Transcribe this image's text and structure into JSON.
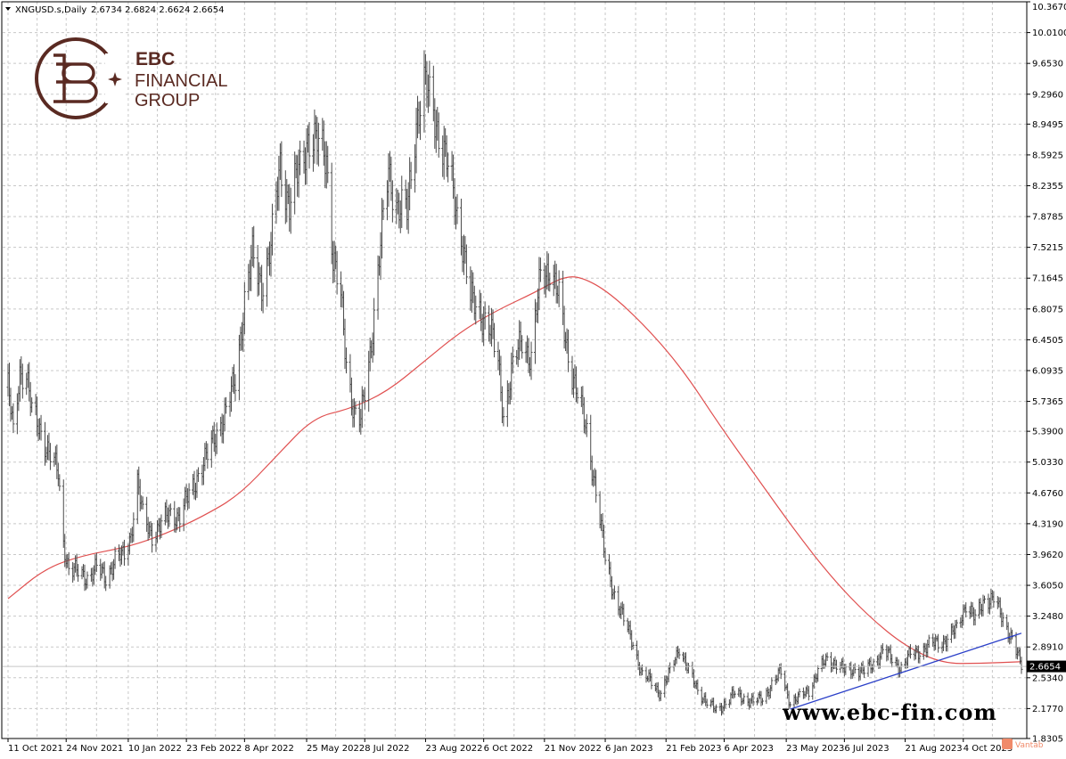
{
  "header": {
    "symbol": "XNGUSD.s,Daily",
    "ohlc": "2.6734 2.6824 2.6624 2.6654"
  },
  "brand": {
    "name": "EBC",
    "line2": "FINANCIAL",
    "line3": "GROUP",
    "website": "www.ebc-fin.com",
    "corner_label": "Vantab"
  },
  "colors": {
    "price_bars": "#4a4a4a",
    "moving_average": "#e05050",
    "trendline": "#2a3fc8",
    "grid": "#c8c8c8",
    "brand": "#5a2a22",
    "price_tag_bg": "#000000"
  },
  "chart_data": {
    "type": "bar",
    "title": "",
    "symbol": "XNGUSD.s",
    "timeframe": "Daily",
    "last_price": 2.6654,
    "last_price_label": "2.6654",
    "ylim": [
      1.83,
      10.367
    ],
    "y_ticks": [
      10.367,
      10.01,
      9.653,
      9.296,
      8.9495,
      8.5925,
      8.2355,
      7.8785,
      7.5215,
      7.1645,
      6.8075,
      6.4505,
      6.0935,
      5.7365,
      5.39,
      5.033,
      4.676,
      4.319,
      3.962,
      3.605,
      3.248,
      2.891,
      2.534,
      2.177,
      1.8305
    ],
    "y_tick_labels": [
      "10.3670",
      "10.0100",
      "9.6530",
      "9.2960",
      "8.9495",
      "8.5925",
      "8.2355",
      "7.8785",
      "7.5215",
      "7.1645",
      "6.8075",
      "6.4505",
      "6.0935",
      "5.7365",
      "5.3900",
      "5.0330",
      "4.6760",
      "4.3190",
      "3.9620",
      "3.6050",
      "3.2480",
      "2.8910",
      "2.5340",
      "2.1770",
      "1.8305"
    ],
    "x_tick_labels": [
      "11 Oct 2021",
      "24 Nov 2021",
      "10 Jan 2022",
      "23 Feb 2022",
      "8 Apr 2022",
      "25 May 2022",
      "8 Jul 2022",
      "23 Aug 2022",
      "6 Oct 2022",
      "21 Nov 2022",
      "6 Jan 2023",
      "21 Feb 2023",
      "6 Apr 2023",
      "23 May 2023",
      "6 Jul 2023",
      "21 Aug 2023",
      "4 Oct 2023"
    ],
    "x_tick_dates": [
      "2021-10-11",
      "2021-11-24",
      "2022-01-10",
      "2022-02-23",
      "2022-04-08",
      "2022-05-25",
      "2022-07-08",
      "2022-08-23",
      "2022-10-06",
      "2022-11-21",
      "2023-01-06",
      "2023-02-21",
      "2023-04-06",
      "2023-05-23",
      "2023-07-06",
      "2023-08-21",
      "2023-10-04"
    ],
    "x_range": [
      "2021-10-11",
      "2023-11-17"
    ],
    "grid": true,
    "price_path": [
      [
        "2021-10-11",
        5.9
      ],
      [
        "2021-10-15",
        5.35
      ],
      [
        "2021-10-20",
        6.1
      ],
      [
        "2021-10-25",
        6.05
      ],
      [
        "2021-10-29",
        5.6
      ],
      [
        "2021-11-05",
        5.4
      ],
      [
        "2021-11-12",
        5.1
      ],
      [
        "2021-11-18",
        4.9
      ],
      [
        "2021-11-22",
        4.1
      ],
      [
        "2021-11-26",
        3.8
      ],
      [
        "2021-12-03",
        3.75
      ],
      [
        "2021-12-10",
        3.7
      ],
      [
        "2021-12-17",
        3.8
      ],
      [
        "2021-12-24",
        3.7
      ],
      [
        "2021-12-31",
        3.9
      ],
      [
        "2022-01-07",
        3.95
      ],
      [
        "2022-01-12",
        4.2
      ],
      [
        "2022-01-17",
        4.8
      ],
      [
        "2022-01-21",
        4.4
      ],
      [
        "2022-01-28",
        4.2
      ],
      [
        "2022-02-04",
        4.3
      ],
      [
        "2022-02-11",
        4.45
      ],
      [
        "2022-02-18",
        4.4
      ],
      [
        "2022-02-25",
        4.65
      ],
      [
        "2022-03-04",
        4.9
      ],
      [
        "2022-03-11",
        5.1
      ],
      [
        "2022-03-18",
        5.4
      ],
      [
        "2022-03-25",
        5.6
      ],
      [
        "2022-04-01",
        6.0
      ],
      [
        "2022-04-08",
        6.9
      ],
      [
        "2022-04-14",
        7.4
      ],
      [
        "2022-04-21",
        7.1
      ],
      [
        "2022-04-28",
        7.5
      ],
      [
        "2022-05-05",
        8.5
      ],
      [
        "2022-05-12",
        8.0
      ],
      [
        "2022-05-19",
        8.4
      ],
      [
        "2022-05-26",
        8.8
      ],
      [
        "2022-06-02",
        8.7
      ],
      [
        "2022-06-09",
        8.6
      ],
      [
        "2022-06-14",
        7.4
      ],
      [
        "2022-06-20",
        6.9
      ],
      [
        "2022-06-24",
        6.2
      ],
      [
        "2022-06-30",
        5.6
      ],
      [
        "2022-07-05",
        5.5
      ],
      [
        "2022-07-12",
        6.3
      ],
      [
        "2022-07-19",
        7.4
      ],
      [
        "2022-07-26",
        8.4
      ],
      [
        "2022-08-02",
        8.0
      ],
      [
        "2022-08-09",
        7.9
      ],
      [
        "2022-08-16",
        9.0
      ],
      [
        "2022-08-22",
        9.4
      ],
      [
        "2022-08-29",
        9.1
      ],
      [
        "2022-09-05",
        8.7
      ],
      [
        "2022-09-12",
        8.2
      ],
      [
        "2022-09-19",
        7.7
      ],
      [
        "2022-09-26",
        6.9
      ],
      [
        "2022-10-03",
        6.8
      ],
      [
        "2022-10-10",
        6.6
      ],
      [
        "2022-10-17",
        6.2
      ],
      [
        "2022-10-21",
        5.6
      ],
      [
        "2022-10-28",
        6.1
      ],
      [
        "2022-11-04",
        6.5
      ],
      [
        "2022-11-11",
        6.2
      ],
      [
        "2022-11-18",
        7.2
      ],
      [
        "2022-11-25",
        7.3
      ],
      [
        "2022-12-02",
        6.9
      ],
      [
        "2022-12-09",
        6.3
      ],
      [
        "2022-12-16",
        5.8
      ],
      [
        "2022-12-23",
        5.4
      ],
      [
        "2022-12-30",
        4.7
      ],
      [
        "2023-01-06",
        3.9
      ],
      [
        "2023-01-13",
        3.5
      ],
      [
        "2023-01-20",
        3.2
      ],
      [
        "2023-01-27",
        2.95
      ],
      [
        "2023-02-03",
        2.55
      ],
      [
        "2023-02-10",
        2.5
      ],
      [
        "2023-02-17",
        2.35
      ],
      [
        "2023-02-24",
        2.6
      ],
      [
        "2023-03-03",
        2.9
      ],
      [
        "2023-03-10",
        2.6
      ],
      [
        "2023-03-17",
        2.4
      ],
      [
        "2023-03-24",
        2.25
      ],
      [
        "2023-03-31",
        2.15
      ],
      [
        "2023-04-07",
        2.25
      ],
      [
        "2023-04-14",
        2.35
      ],
      [
        "2023-04-21",
        2.3
      ],
      [
        "2023-04-28",
        2.25
      ],
      [
        "2023-05-05",
        2.3
      ],
      [
        "2023-05-12",
        2.45
      ],
      [
        "2023-05-19",
        2.6
      ],
      [
        "2023-05-26",
        2.25
      ],
      [
        "2023-06-02",
        2.3
      ],
      [
        "2023-06-09",
        2.4
      ],
      [
        "2023-06-16",
        2.6
      ],
      [
        "2023-06-23",
        2.75
      ],
      [
        "2023-06-30",
        2.7
      ],
      [
        "2023-07-07",
        2.6
      ],
      [
        "2023-07-14",
        2.65
      ],
      [
        "2023-07-21",
        2.6
      ],
      [
        "2023-07-28",
        2.7
      ],
      [
        "2023-08-04",
        2.85
      ],
      [
        "2023-08-11",
        2.75
      ],
      [
        "2023-08-18",
        2.65
      ],
      [
        "2023-08-25",
        2.8
      ],
      [
        "2023-09-01",
        2.85
      ],
      [
        "2023-09-08",
        2.9
      ],
      [
        "2023-09-15",
        2.95
      ],
      [
        "2023-09-22",
        2.98
      ],
      [
        "2023-09-29",
        3.1
      ],
      [
        "2023-10-06",
        3.4
      ],
      [
        "2023-10-13",
        3.2
      ],
      [
        "2023-10-20",
        3.45
      ],
      [
        "2023-10-27",
        3.45
      ],
      [
        "2023-11-03",
        3.2
      ],
      [
        "2023-11-10",
        3.0
      ],
      [
        "2023-11-15",
        2.75
      ],
      [
        "2023-11-17",
        2.66
      ]
    ],
    "moving_average": [
      [
        "2021-10-11",
        3.45
      ],
      [
        "2021-11-08",
        3.8
      ],
      [
        "2021-12-06",
        3.95
      ],
      [
        "2022-01-10",
        4.05
      ],
      [
        "2022-02-07",
        4.2
      ],
      [
        "2022-03-07",
        4.4
      ],
      [
        "2022-04-04",
        4.65
      ],
      [
        "2022-05-02",
        5.1
      ],
      [
        "2022-05-30",
        5.55
      ],
      [
        "2022-06-27",
        5.65
      ],
      [
        "2022-07-25",
        5.85
      ],
      [
        "2022-08-22",
        6.2
      ],
      [
        "2022-09-19",
        6.55
      ],
      [
        "2022-10-17",
        6.8
      ],
      [
        "2022-11-14",
        7.0
      ],
      [
        "2022-12-05",
        7.18
      ],
      [
        "2022-12-19",
        7.18
      ],
      [
        "2023-01-09",
        7.0
      ],
      [
        "2023-02-06",
        6.6
      ],
      [
        "2023-03-06",
        6.1
      ],
      [
        "2023-04-03",
        5.45
      ],
      [
        "2023-05-01",
        4.85
      ],
      [
        "2023-05-29",
        4.25
      ],
      [
        "2023-06-26",
        3.7
      ],
      [
        "2023-07-24",
        3.25
      ],
      [
        "2023-08-21",
        2.9
      ],
      [
        "2023-09-18",
        2.7
      ],
      [
        "2023-10-16",
        2.7
      ],
      [
        "2023-11-17",
        2.72
      ]
    ],
    "trendline": [
      [
        "2023-05-26",
        2.17
      ],
      [
        "2023-11-17",
        3.05
      ]
    ]
  }
}
